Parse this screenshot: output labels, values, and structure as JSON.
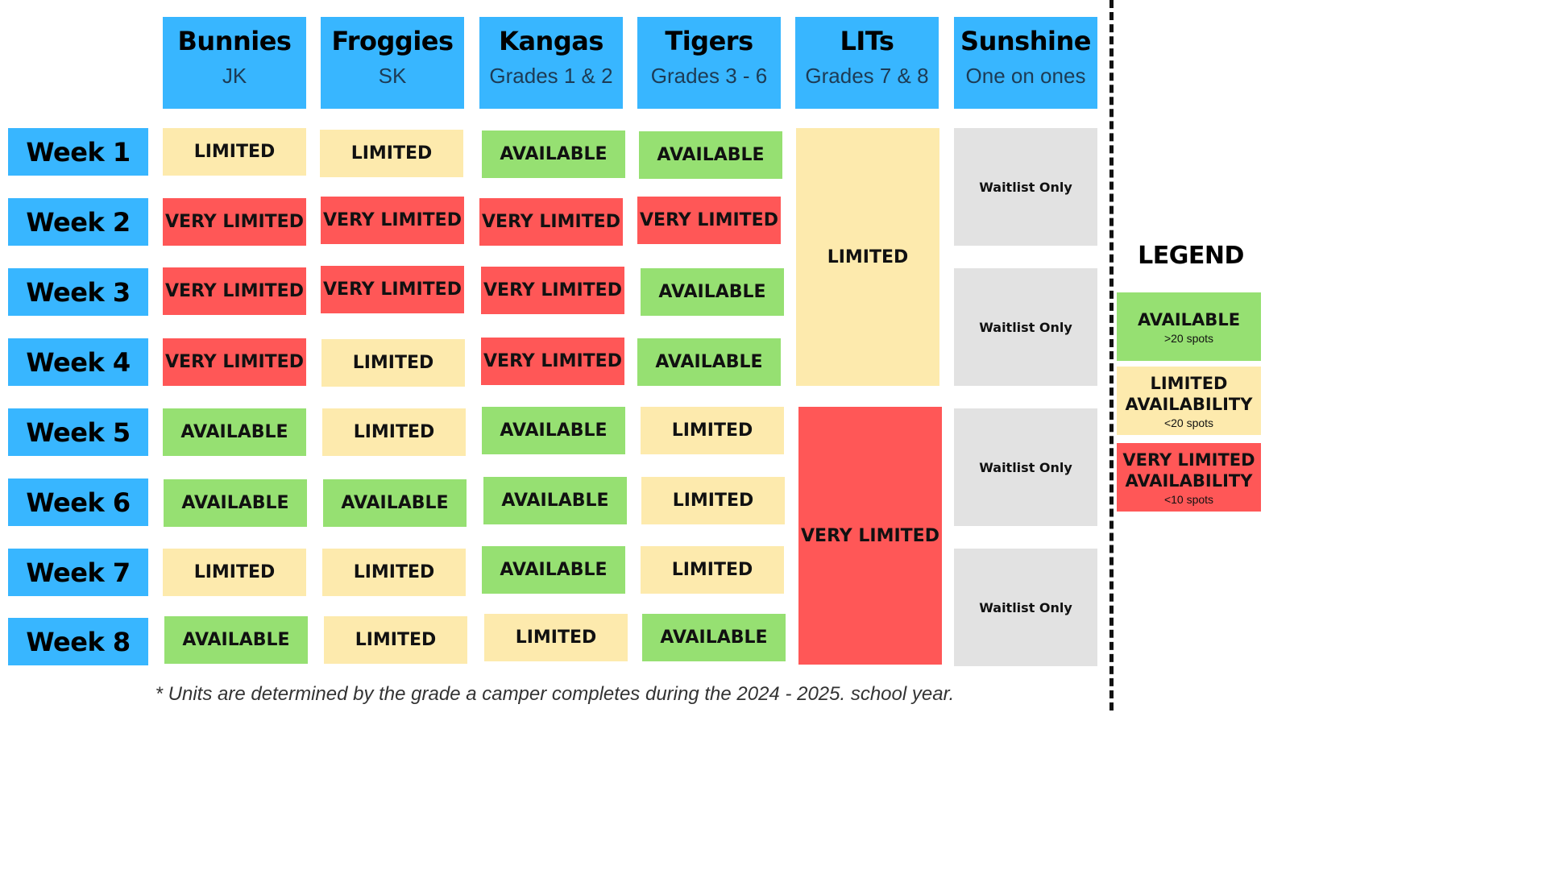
{
  "units": [
    {
      "name": "Bunnies",
      "sub": "JK"
    },
    {
      "name": "Froggies",
      "sub": "SK"
    },
    {
      "name": "Kangas",
      "sub": "Grades 1 & 2"
    },
    {
      "name": "Tigers",
      "sub": "Grades 3 - 6"
    },
    {
      "name": "LITs",
      "sub": "Grades 7 & 8"
    },
    {
      "name": "Sunshine",
      "sub": "One on ones"
    }
  ],
  "weeks": [
    "Week 1",
    "Week 2",
    "Week 3",
    "Week 4",
    "Week 5",
    "Week 6",
    "Week 7",
    "Week 8"
  ],
  "availability": [
    [
      "LIMITED",
      "LIMITED",
      "AVAILABLE",
      "AVAILABLE"
    ],
    [
      "VERY LIMITED",
      "VERY LIMITED",
      "VERY LIMITED",
      "VERY LIMITED"
    ],
    [
      "VERY LIMITED",
      "VERY LIMITED",
      "VERY LIMITED",
      "AVAILABLE"
    ],
    [
      "VERY LIMITED",
      "LIMITED",
      "VERY LIMITED",
      "AVAILABLE"
    ],
    [
      "AVAILABLE",
      "LIMITED",
      "AVAILABLE",
      "LIMITED"
    ],
    [
      "AVAILABLE",
      "AVAILABLE",
      "AVAILABLE",
      "LIMITED"
    ],
    [
      "LIMITED",
      "LIMITED",
      "AVAILABLE",
      "LIMITED"
    ],
    [
      "AVAILABLE",
      "LIMITED",
      "LIMITED",
      "AVAILABLE"
    ]
  ],
  "lits": [
    {
      "weeks": "1-4",
      "status": "LIMITED"
    },
    {
      "weeks": "5-8",
      "status": "VERY LIMITED"
    }
  ],
  "sunshine": [
    {
      "weeks": "1-2",
      "status": "Waitlist Only"
    },
    {
      "weeks": "3-4",
      "status": "Waitlist Only"
    },
    {
      "weeks": "5-6",
      "status": "Waitlist Only"
    },
    {
      "weeks": "7-8",
      "status": "Waitlist Only"
    }
  ],
  "legend": {
    "title": "LEGEND",
    "items": [
      {
        "label": "AVAILABLE",
        "sub": ">20 spots",
        "color": "#96e072"
      },
      {
        "label": "LIMITED AVAILABILITY",
        "sub": "<20 spots",
        "color": "#fdeaad"
      },
      {
        "label": "VERY LIMITED AVAILABILITY",
        "sub": "<10 spots",
        "color": "#ff5757"
      }
    ]
  },
  "footnote": "* Units are determined by the grade a camper completes during the 2024 - 2025. school year.",
  "colors": {
    "header_blue": "#38b6ff",
    "available": "#96e072",
    "limited": "#fdeaad",
    "very_limited": "#ff5757",
    "waitlist": "#e2e2e2"
  }
}
